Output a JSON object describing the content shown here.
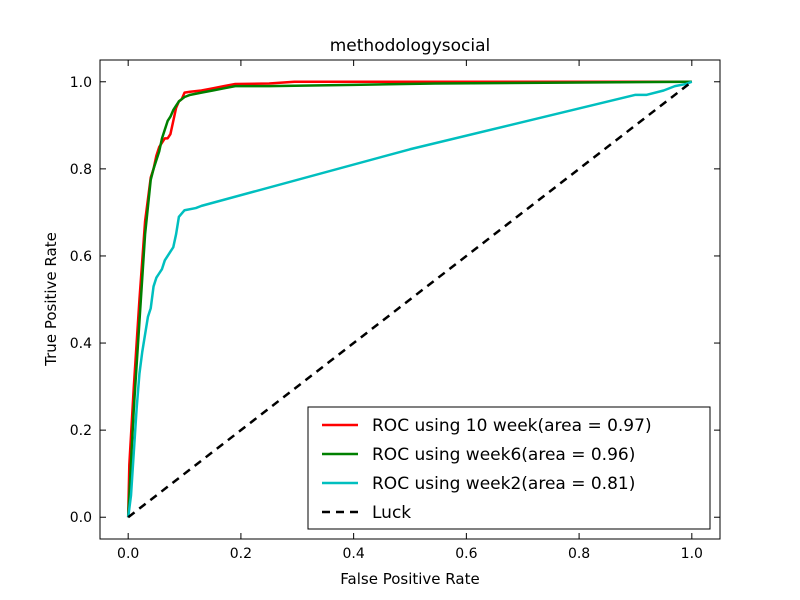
{
  "chart_data": {
    "type": "line",
    "title": "methodologysocial",
    "xlabel": "False Positive Rate",
    "ylabel": "True Positive Rate",
    "xlim": [
      -0.05,
      1.05
    ],
    "ylim": [
      -0.05,
      1.05
    ],
    "x_ticks": [
      "0.0",
      "0.2",
      "0.4",
      "0.6",
      "0.8",
      "1.0"
    ],
    "y_ticks": [
      "0.0",
      "0.2",
      "0.4",
      "0.6",
      "0.8",
      "1.0"
    ],
    "grid": false,
    "legend_position": "lower-right",
    "series": [
      {
        "name": "ROC using 10 week(area = 0.97)",
        "color": "#ff0000",
        "style": "solid",
        "x": [
          0.0,
          0.002,
          0.01,
          0.02,
          0.03,
          0.04,
          0.045,
          0.05,
          0.055,
          0.06,
          0.065,
          0.07,
          0.075,
          0.08,
          0.085,
          0.09,
          0.095,
          0.1,
          0.11,
          0.13,
          0.15,
          0.17,
          0.19,
          0.25,
          0.295,
          0.4,
          0.545,
          1.0
        ],
        "y": [
          0.0,
          0.12,
          0.3,
          0.5,
          0.68,
          0.78,
          0.8,
          0.83,
          0.85,
          0.86,
          0.87,
          0.87,
          0.88,
          0.91,
          0.94,
          0.955,
          0.96,
          0.975,
          0.977,
          0.98,
          0.985,
          0.99,
          0.995,
          0.996,
          1.0,
          1.0,
          1.0,
          1.0
        ]
      },
      {
        "name": "ROC using week6(area = 0.96)",
        "color": "#008000",
        "style": "solid",
        "x": [
          0.0,
          0.002,
          0.01,
          0.02,
          0.03,
          0.04,
          0.045,
          0.05,
          0.055,
          0.06,
          0.065,
          0.07,
          0.075,
          0.08,
          0.085,
          0.09,
          0.095,
          0.1,
          0.11,
          0.13,
          0.15,
          0.17,
          0.19,
          0.25,
          0.4,
          0.545,
          1.0
        ],
        "y": [
          0.0,
          0.05,
          0.25,
          0.45,
          0.65,
          0.775,
          0.8,
          0.82,
          0.84,
          0.87,
          0.89,
          0.91,
          0.92,
          0.935,
          0.945,
          0.955,
          0.96,
          0.965,
          0.97,
          0.975,
          0.98,
          0.985,
          0.99,
          0.99,
          0.993,
          0.996,
          1.0
        ]
      },
      {
        "name": "ROC using week2(area = 0.81)",
        "color": "#00bfbf",
        "style": "solid",
        "x": [
          0.0,
          0.005,
          0.01,
          0.015,
          0.02,
          0.025,
          0.03,
          0.035,
          0.04,
          0.045,
          0.05,
          0.055,
          0.06,
          0.065,
          0.07,
          0.075,
          0.08,
          0.085,
          0.09,
          0.1,
          0.12,
          0.13,
          0.5,
          0.9,
          0.92,
          0.95,
          0.97,
          0.99,
          1.0
        ],
        "y": [
          0.0,
          0.05,
          0.15,
          0.25,
          0.33,
          0.38,
          0.42,
          0.46,
          0.48,
          0.53,
          0.55,
          0.56,
          0.57,
          0.59,
          0.6,
          0.61,
          0.62,
          0.65,
          0.69,
          0.705,
          0.71,
          0.715,
          0.845,
          0.97,
          0.97,
          0.98,
          0.99,
          0.995,
          1.0
        ]
      },
      {
        "name": "Luck",
        "color": "#000000",
        "style": "dashed",
        "x": [
          0.0,
          1.0
        ],
        "y": [
          0.0,
          1.0
        ]
      }
    ]
  }
}
